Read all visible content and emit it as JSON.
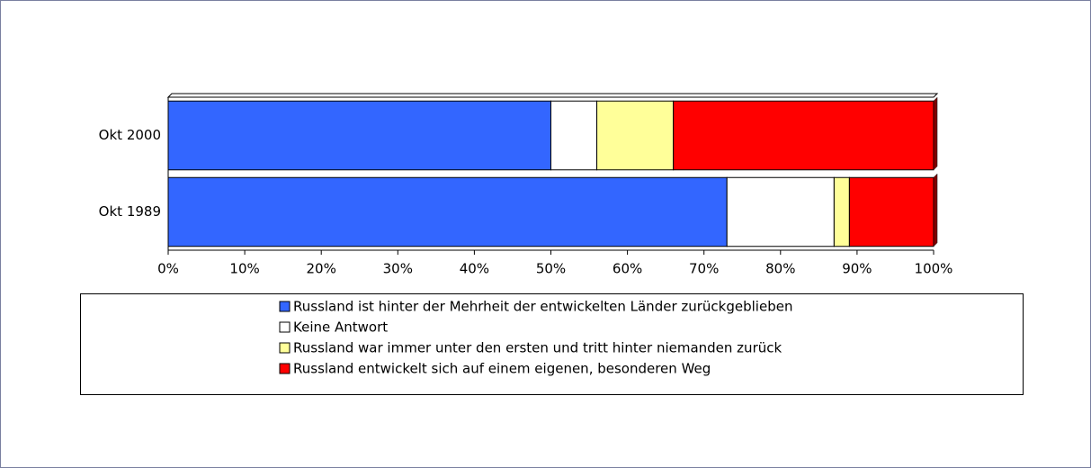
{
  "chart_data": {
    "type": "bar",
    "orientation": "horizontal",
    "stacked": true,
    "categories": [
      "Okt 2000",
      "Okt 1989"
    ],
    "series": [
      {
        "name": "Russland ist hinter der Mehrheit der entwickelten Länder zurückgeblieben",
        "color": "#3366ff",
        "values": [
          50,
          73
        ]
      },
      {
        "name": "Keine Antwort",
        "color": "#ffffff",
        "values": [
          6,
          14
        ]
      },
      {
        "name": "Russland war immer unter den ersten und tritt hinter niemanden zurück",
        "color": "#ffff99",
        "values": [
          10,
          2
        ]
      },
      {
        "name": "Russland entwickelt sich auf einem eigenen, besonderen Weg",
        "color": "#ff0000",
        "values": [
          34,
          11
        ]
      }
    ],
    "xlim": [
      0,
      100
    ],
    "xticks": [
      {
        "value": 0,
        "label": "0%"
      },
      {
        "value": 10,
        "label": "10%"
      },
      {
        "value": 20,
        "label": "20%"
      },
      {
        "value": 30,
        "label": "30%"
      },
      {
        "value": 40,
        "label": "40%"
      },
      {
        "value": 50,
        "label": "50%"
      },
      {
        "value": 60,
        "label": "60%"
      },
      {
        "value": 70,
        "label": "70%"
      },
      {
        "value": 80,
        "label": "80%"
      },
      {
        "value": 90,
        "label": "90%"
      },
      {
        "value": 100,
        "label": "100%"
      }
    ],
    "legend": "bottom"
  }
}
